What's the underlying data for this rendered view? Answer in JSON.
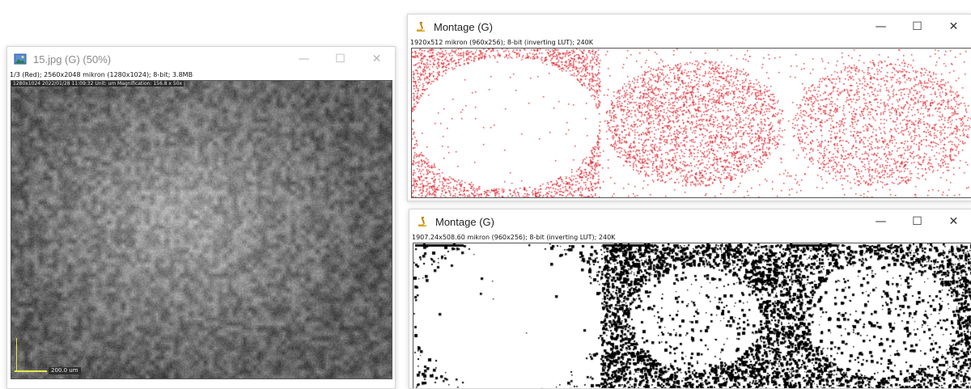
{
  "windows": {
    "image": {
      "title": "15.jpg (G) (50%)",
      "info": "1/3 (Red); 2560x2048 mikron (1280x1024); 8-bit; 3.8MB",
      "overlay": "1280x1024  2022/01/28 11:09:32  Unit: um Magnification: 156.8 x  50x",
      "scale_label": "200.0 um"
    },
    "montage_red": {
      "title": "Montage (G)",
      "info": "1920x512 mikron (960x256); 8-bit (inverting LUT); 240K"
    },
    "montage_bw": {
      "title": "Montage (G)",
      "info": "1907.24x508.60 mikron (960x256); 8-bit (inverting LUT); 240K"
    }
  },
  "controls": {
    "minimize": "—",
    "maximize": "☐",
    "close": "✕"
  },
  "colors": {
    "red_points": "#e0202a",
    "scale_bar": "#e7e74a"
  },
  "icons": [
    "image-window-icon",
    "microscope-icon"
  ]
}
